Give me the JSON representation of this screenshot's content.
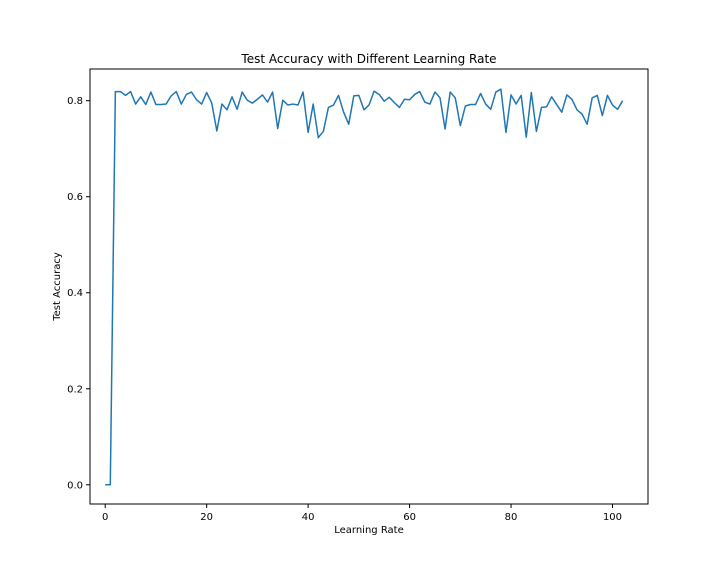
{
  "chart_data": {
    "type": "line",
    "title": "Test Accuracy with Different Learning Rate",
    "xlabel": "Learning Rate",
    "ylabel": "Test Accuracy",
    "xlim": [
      -3,
      107
    ],
    "ylim": [
      -0.04,
      0.866
    ],
    "xticks": [
      0,
      20,
      40,
      60,
      80,
      100
    ],
    "yticks": [
      0.0,
      0.2,
      0.4,
      0.6,
      0.8
    ],
    "ytick_labels": [
      "0.0",
      "0.2",
      "0.4",
      "0.6",
      "0.8"
    ],
    "grid": false,
    "series": [
      {
        "color": "#1f77b4",
        "x": [
          0,
          1,
          2,
          3,
          4,
          5,
          6,
          7,
          8,
          9,
          10,
          11,
          12,
          13,
          14,
          15,
          16,
          17,
          18,
          19,
          20,
          21,
          22,
          23,
          24,
          25,
          26,
          27,
          28,
          29,
          30,
          31,
          32,
          33,
          34,
          35,
          36,
          37,
          38,
          39,
          40,
          41,
          42,
          43,
          44,
          45,
          46,
          47,
          48,
          49,
          50,
          51,
          52,
          53,
          54,
          55,
          56,
          57,
          58,
          59,
          60,
          61,
          62,
          63,
          64,
          65,
          66,
          67,
          68,
          69,
          70,
          71,
          72,
          73,
          74,
          75,
          76,
          77,
          78,
          79,
          80,
          81,
          82,
          83,
          84,
          85,
          86,
          87,
          88,
          89,
          90,
          91,
          92,
          93,
          94,
          95,
          96,
          97,
          98,
          99,
          100,
          101,
          102
        ],
        "values": [
          0.0,
          0.0,
          0.819,
          0.819,
          0.811,
          0.819,
          0.793,
          0.808,
          0.792,
          0.818,
          0.792,
          0.792,
          0.793,
          0.81,
          0.819,
          0.793,
          0.813,
          0.818,
          0.802,
          0.793,
          0.817,
          0.795,
          0.737,
          0.793,
          0.781,
          0.808,
          0.782,
          0.818,
          0.801,
          0.795,
          0.803,
          0.812,
          0.797,
          0.818,
          0.742,
          0.801,
          0.791,
          0.793,
          0.791,
          0.818,
          0.734,
          0.793,
          0.723,
          0.736,
          0.786,
          0.791,
          0.811,
          0.776,
          0.751,
          0.81,
          0.811,
          0.781,
          0.791,
          0.82,
          0.813,
          0.799,
          0.807,
          0.796,
          0.786,
          0.803,
          0.802,
          0.813,
          0.819,
          0.797,
          0.793,
          0.818,
          0.806,
          0.741,
          0.818,
          0.806,
          0.748,
          0.789,
          0.792,
          0.792,
          0.815,
          0.793,
          0.782,
          0.818,
          0.824,
          0.734,
          0.812,
          0.793,
          0.811,
          0.724,
          0.817,
          0.736,
          0.786,
          0.787,
          0.808,
          0.792,
          0.776,
          0.812,
          0.803,
          0.781,
          0.772,
          0.751,
          0.806,
          0.811,
          0.769,
          0.811,
          0.791,
          0.782,
          0.8
        ]
      }
    ]
  }
}
